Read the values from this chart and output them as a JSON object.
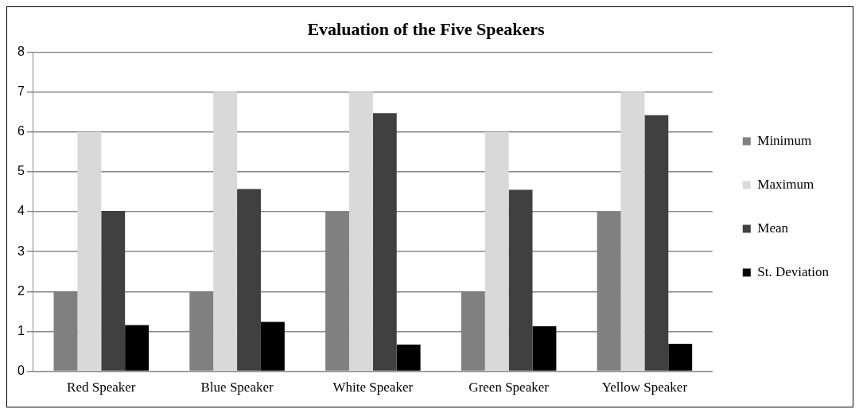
{
  "chart_data": {
    "type": "bar",
    "title": "Evaluation of the Five Speakers",
    "categories": [
      "Red Speaker",
      "Blue Speaker",
      "White Speaker",
      "Green Speaker",
      "Yellow Speaker"
    ],
    "series": [
      {
        "name": "Minimum",
        "color": "#808080",
        "values": [
          2,
          2,
          4,
          2,
          4
        ]
      },
      {
        "name": "Maximum",
        "color": "#d9d9d9",
        "values": [
          6,
          7,
          7,
          6,
          7
        ]
      },
      {
        "name": "Mean",
        "color": "#404040",
        "values": [
          4.02,
          4.57,
          6.47,
          4.55,
          6.42
        ]
      },
      {
        "name": "St. Deviation",
        "color": "#000000",
        "values": [
          1.16,
          1.24,
          0.67,
          1.13,
          0.69
        ]
      }
    ],
    "ylim": [
      0,
      8
    ],
    "yticks": [
      0,
      1,
      2,
      3,
      4,
      5,
      6,
      7,
      8
    ],
    "grid": "y",
    "legend": "right"
  }
}
